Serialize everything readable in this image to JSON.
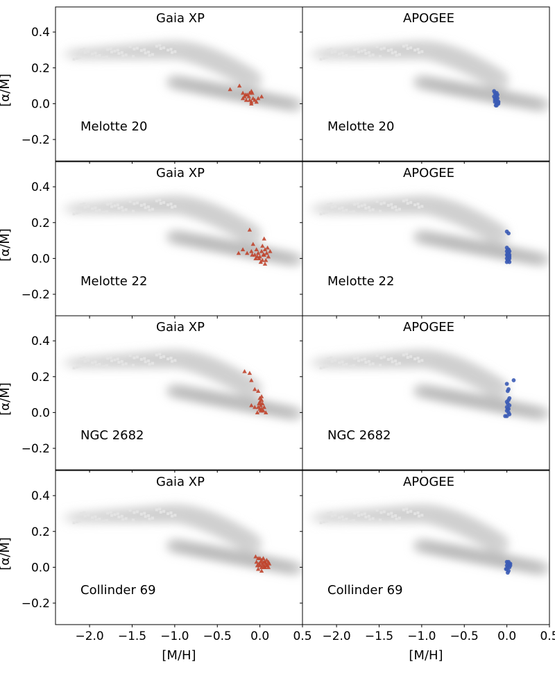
{
  "figure": {
    "xlabel": "[M/H]",
    "ylabel": "[α/M]"
  },
  "chart_data": [
    {
      "type": "scatter",
      "title": "Gaia XP",
      "annotation": "Melotte 20",
      "xlabel": "",
      "ylabel": "[α/M]",
      "xlim": [
        -2.4,
        0.5
      ],
      "ylim": [
        -0.32,
        0.54
      ],
      "xticks": [
        "−2.0",
        "−1.5",
        "−1.0",
        "−0.5",
        "0.0",
        "0.5"
      ],
      "yticks": [
        "−0.2",
        "0.0",
        "0.2",
        "0.4"
      ],
      "marker": "triangle",
      "color": "#c0442c",
      "grid": false,
      "background": "grey density histogram of field stars (two sequences)",
      "x": [
        -0.35,
        -0.24,
        -0.2,
        -0.18,
        -0.15,
        -0.12,
        -0.1,
        -0.08,
        -0.2,
        -0.16,
        -0.13,
        -0.1,
        -0.06,
        -0.02,
        -0.17,
        -0.09,
        -0.04,
        -0.1,
        -0.12,
        0.02
      ],
      "y": [
        0.08,
        0.1,
        0.06,
        0.04,
        0.05,
        0.06,
        0.07,
        0.03,
        0.03,
        0.02,
        0.04,
        0.01,
        0.02,
        0.03,
        0.05,
        0.06,
        0.01,
        0.0,
        0.02,
        0.04
      ]
    },
    {
      "type": "scatter",
      "title": "APOGEE",
      "annotation": "Melotte 20",
      "xlabel": "",
      "ylabel": "",
      "xlim": [
        -2.4,
        0.5
      ],
      "ylim": [
        -0.32,
        0.54
      ],
      "xticks": [
        "−2.0",
        "−1.5",
        "−1.0",
        "−0.5",
        "0.0",
        "0.5"
      ],
      "yticks": [
        "−0.2",
        "0.0",
        "0.2",
        "0.4"
      ],
      "marker": "circle",
      "color": "#3b5bb5",
      "grid": false,
      "background": "grey density histogram of field stars (two sequences)",
      "x": [
        -0.15,
        -0.14,
        -0.13,
        -0.15,
        -0.12,
        -0.14,
        -0.11,
        -0.13,
        -0.12,
        -0.14,
        -0.1,
        -0.12,
        -0.11,
        -0.13,
        -0.12,
        -0.1,
        -0.14,
        -0.11,
        -0.12,
        -0.1
      ],
      "y": [
        0.07,
        0.06,
        0.05,
        0.04,
        0.04,
        0.03,
        0.03,
        0.02,
        0.02,
        0.01,
        0.01,
        0.0,
        0.0,
        -0.01,
        -0.01,
        0.0,
        0.02,
        0.05,
        0.06,
        0.01
      ]
    },
    {
      "type": "scatter",
      "title": "Gaia XP",
      "annotation": "Melotte 22",
      "xlabel": "",
      "ylabel": "[α/M]",
      "xlim": [
        -2.4,
        0.5
      ],
      "ylim": [
        -0.32,
        0.54
      ],
      "xticks": [
        "−2.0",
        "−1.5",
        "−1.0",
        "−0.5",
        "0.0",
        "0.5"
      ],
      "yticks": [
        "−0.2",
        "0.0",
        "0.2",
        "0.4"
      ],
      "marker": "triangle",
      "color": "#c0442c",
      "grid": false,
      "background": "grey density histogram of field stars (two sequences)",
      "x": [
        -0.12,
        0.05,
        -0.08,
        -0.2,
        -0.25,
        -0.15,
        -0.1,
        -0.06,
        -0.04,
        -0.02,
        0.0,
        0.02,
        0.04,
        0.06,
        0.08,
        0.1,
        0.12,
        -0.05,
        0.03,
        0.07,
        -0.09,
        0.01,
        0.05,
        -0.03,
        0.09,
        -0.01,
        0.03,
        0.06
      ],
      "y": [
        0.16,
        0.11,
        0.08,
        0.05,
        0.03,
        0.03,
        0.04,
        0.02,
        0.05,
        0.03,
        0.01,
        0.04,
        0.02,
        0.05,
        0.03,
        0.01,
        0.04,
        0.0,
        0.07,
        -0.01,
        0.02,
        -0.02,
        0.02,
        0.01,
        0.06,
        0.0,
        -0.01,
        -0.03
      ]
    },
    {
      "type": "scatter",
      "title": "APOGEE",
      "annotation": "Melotte 22",
      "xlabel": "",
      "ylabel": "",
      "xlim": [
        -2.4,
        0.5
      ],
      "ylim": [
        -0.32,
        0.54
      ],
      "xticks": [
        "−2.0",
        "−1.5",
        "−1.0",
        "−0.5",
        "0.0",
        "0.5"
      ],
      "yticks": [
        "−0.2",
        "0.0",
        "0.2",
        "0.4"
      ],
      "marker": "circle",
      "color": "#3b5bb5",
      "grid": false,
      "background": "grey density histogram of field stars (two sequences)",
      "x": [
        0.0,
        0.02,
        0.0,
        0.02,
        0.01,
        0.03,
        0.0,
        0.02,
        0.01,
        0.03,
        0.0,
        0.02,
        0.01,
        0.03,
        0.0,
        0.02,
        0.01,
        0.03,
        0.02,
        0.01,
        0.0,
        0.03
      ],
      "y": [
        0.15,
        0.14,
        0.06,
        0.05,
        0.05,
        0.04,
        0.04,
        0.03,
        0.03,
        0.02,
        0.02,
        0.01,
        0.01,
        0.0,
        0.0,
        -0.01,
        -0.01,
        -0.02,
        0.03,
        0.02,
        -0.02,
        0.01
      ]
    },
    {
      "type": "scatter",
      "title": "Gaia XP",
      "annotation": "NGC 2682",
      "xlabel": "",
      "ylabel": "[α/M]",
      "xlim": [
        -2.4,
        0.5
      ],
      "ylim": [
        -0.32,
        0.54
      ],
      "xticks": [
        "−2.0",
        "−1.5",
        "−1.0",
        "−0.5",
        "0.0",
        "0.5"
      ],
      "yticks": [
        "−0.2",
        "0.0",
        "0.2",
        "0.4"
      ],
      "marker": "triangle",
      "color": "#c0442c",
      "grid": false,
      "background": "grey density histogram of field stars (two sequences)",
      "x": [
        -0.18,
        -0.12,
        -0.1,
        -0.06,
        -0.02,
        0.0,
        0.02,
        0.0,
        -0.01,
        0.01,
        0.03,
        -0.1,
        -0.06,
        -0.02,
        0.0,
        0.02,
        0.04,
        0.07,
        -0.03,
        0.01,
        0.05,
        0.02
      ],
      "y": [
        0.23,
        0.22,
        0.18,
        0.13,
        0.12,
        0.08,
        0.07,
        0.06,
        0.05,
        0.04,
        0.05,
        0.04,
        0.03,
        0.03,
        0.02,
        0.02,
        0.01,
        0.0,
        0.0,
        0.01,
        0.03,
        0.09
      ]
    },
    {
      "type": "scatter",
      "title": "APOGEE",
      "annotation": "NGC 2682",
      "xlabel": "",
      "ylabel": "",
      "xlim": [
        -2.4,
        0.5
      ],
      "ylim": [
        -0.32,
        0.54
      ],
      "xticks": [
        "−2.0",
        "−1.5",
        "−1.0",
        "−0.5",
        "0.0",
        "0.5"
      ],
      "yticks": [
        "−0.2",
        "0.0",
        "0.2",
        "0.4"
      ],
      "marker": "circle",
      "color": "#3b5bb5",
      "grid": false,
      "background": "grey density histogram of field stars (two sequences)",
      "x": [
        0.08,
        0.0,
        0.02,
        0.01,
        0.03,
        0.02,
        0.0,
        0.01,
        0.03,
        0.0,
        0.02,
        0.01,
        0.0,
        0.02,
        0.03,
        -0.02,
        0.0
      ],
      "y": [
        0.18,
        0.16,
        0.13,
        0.12,
        0.08,
        0.07,
        0.06,
        0.05,
        0.04,
        0.03,
        0.02,
        0.02,
        0.01,
        0.0,
        -0.01,
        -0.02,
        -0.02
      ]
    },
    {
      "type": "scatter",
      "title": "Gaia XP",
      "annotation": "Collinder 69",
      "xlabel": "[M/H]",
      "ylabel": "[α/M]",
      "xlim": [
        -2.4,
        0.5
      ],
      "ylim": [
        -0.32,
        0.54
      ],
      "xticks": [
        "−2.0",
        "−1.5",
        "−1.0",
        "−0.5",
        "0.0",
        "0.5"
      ],
      "yticks": [
        "−0.2",
        "0.0",
        "0.2",
        "0.4"
      ],
      "marker": "triangle",
      "color": "#c0442c",
      "grid": false,
      "background": "grey density histogram of field stars (two sequences)",
      "x": [
        -0.05,
        -0.02,
        0.0,
        0.02,
        0.04,
        0.06,
        0.08,
        0.1,
        -0.04,
        -0.01,
        0.01,
        0.03,
        0.05,
        0.07,
        0.09,
        0.11,
        -0.03,
        0.0,
        0.02,
        0.04,
        0.06,
        0.08,
        -0.02,
        0.02,
        0.05,
        0.1
      ],
      "y": [
        0.06,
        0.05,
        0.05,
        0.04,
        0.05,
        0.03,
        0.04,
        0.03,
        0.03,
        0.02,
        0.03,
        0.02,
        0.03,
        0.02,
        0.01,
        0.02,
        0.01,
        0.01,
        0.0,
        0.01,
        0.0,
        0.01,
        -0.01,
        -0.02,
        0.0,
        0.0
      ]
    },
    {
      "type": "scatter",
      "title": "APOGEE",
      "annotation": "Collinder 69",
      "xlabel": "[M/H]",
      "ylabel": "",
      "xlim": [
        -2.4,
        0.5
      ],
      "ylim": [
        -0.32,
        0.54
      ],
      "xticks": [
        "−2.0",
        "−1.5",
        "−1.0",
        "−0.5",
        "0.0",
        "0.5"
      ],
      "yticks": [
        "−0.2",
        "0.0",
        "0.2",
        "0.4"
      ],
      "marker": "circle",
      "color": "#3b5bb5",
      "grid": false,
      "background": "grey density histogram of field stars (two sequences)",
      "x": [
        0.0,
        0.02,
        0.04,
        0.01,
        0.03,
        0.0,
        0.02,
        0.04,
        0.01,
        0.03,
        0.0,
        0.02,
        -0.01,
        0.01,
        0.03
      ],
      "y": [
        0.03,
        0.03,
        0.02,
        0.02,
        0.02,
        0.01,
        0.01,
        0.01,
        0.0,
        0.0,
        -0.01,
        -0.02,
        -0.01,
        -0.03,
        0.02
      ]
    }
  ]
}
